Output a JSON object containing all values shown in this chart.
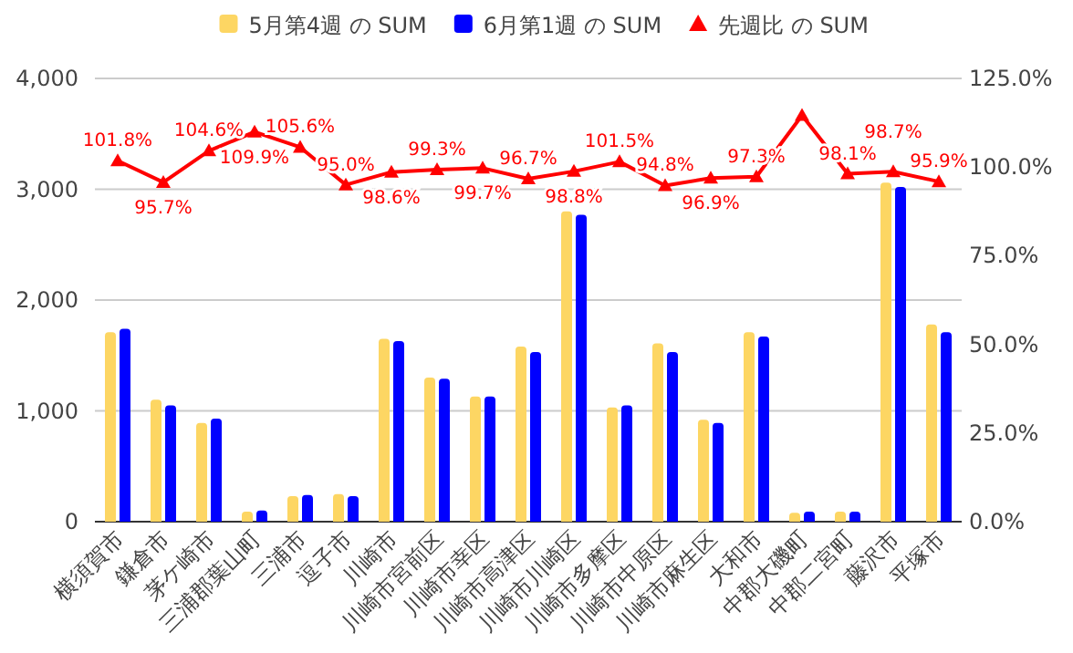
{
  "chart_data": {
    "type": "bar",
    "categories": [
      "横須賀市",
      "鎌倉市",
      "茅ケ崎市",
      "三浦郡葉山町",
      "三浦市",
      "逗子市",
      "川崎市",
      "川崎市宮前区",
      "川崎市幸区",
      "川崎市高津区",
      "川崎市川崎区",
      "川崎市多摩区",
      "川崎市中原区",
      "川崎市麻生区",
      "大和市",
      "中郡大磯町",
      "中郡二宮町",
      "藤沢市",
      "平塚市"
    ],
    "series": [
      {
        "name": "5月第4週 の SUM",
        "color": "#fdd663",
        "values": [
          1710,
          1100,
          890,
          90,
          230,
          250,
          1650,
          1300,
          1130,
          1580,
          2800,
          1030,
          1610,
          920,
          1710,
          80,
          90,
          3060,
          1780
        ]
      },
      {
        "name": "6月第1週 の SUM",
        "color": "#0000ff",
        "values": [
          1740,
          1050,
          930,
          100,
          240,
          230,
          1630,
          1290,
          1130,
          1530,
          2770,
          1050,
          1530,
          890,
          1670,
          90,
          90,
          3020,
          1710
        ]
      },
      {
        "name": "先週比 の SUM",
        "type": "line",
        "axis": "y2",
        "color": "#ff0000",
        "values": [
          101.8,
          95.7,
          104.6,
          109.9,
          105.6,
          95.0,
          98.6,
          99.3,
          99.7,
          96.7,
          98.8,
          101.5,
          94.8,
          96.9,
          97.3,
          114.6,
          98.1,
          98.7,
          95.9
        ],
        "value_labels": [
          "101.8%",
          "95.7%",
          "104.6%",
          "109.9%",
          "105.6%",
          "95.0%",
          "98.6%",
          "99.3%",
          "99.7%",
          "96.7%",
          "98.8%",
          "101.5%",
          "94.8%",
          "96.9%",
          "97.3%",
          null,
          "98.1%",
          "98.7%",
          "95.9%"
        ]
      }
    ],
    "ylim": [
      0,
      4000
    ],
    "yticks": [
      0,
      {
        "value": 1000,
        "label": "1,000"
      },
      {
        "value": 2000,
        "label": "2,000"
      },
      {
        "value": 3000,
        "label": "3,000"
      },
      {
        "value": 4000,
        "label": "4,000"
      }
    ],
    "y2lim": [
      0,
      125
    ],
    "y2ticks": [
      {
        "value": 0,
        "label": "0.0%"
      },
      {
        "value": 25,
        "label": "25.0%"
      },
      {
        "value": 50,
        "label": "50.0%"
      },
      {
        "value": 75,
        "label": "75.0%"
      },
      {
        "value": 100,
        "label": "100.0%"
      },
      {
        "value": 125,
        "label": "125.0%"
      }
    ],
    "grid": "y",
    "legend": "top",
    "marker": "triangle"
  }
}
